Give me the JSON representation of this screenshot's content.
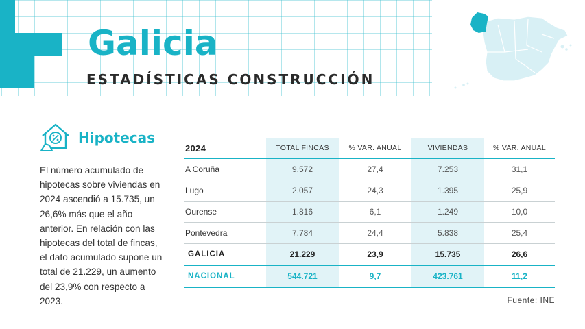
{
  "header": {
    "title": "Galicia",
    "subtitle": "ESTADÍSTICAS CONSTRUCCIÓN"
  },
  "colors": {
    "accent": "#19b3c6",
    "map_light": "#d8f0f5",
    "map_highlight": "#19b3c6",
    "highlight_column": "#e1f3f7"
  },
  "section": {
    "icon": "house-percent-icon",
    "title": "Hipotecas",
    "description": "El número acumulado de hipotecas sobre viviendas en 2024 ascendió a 15.735, un 26,6% más que el año anterior. En relación con las hipotecas del total de fincas, el dato acumulado supone un total de 21.229, un aumento del 23,9% con respecto a 2023."
  },
  "table": {
    "headers": [
      "2024",
      "TOTAL FINCAS",
      "% VAR. ANUAL",
      "VIVIENDAS",
      "% VAR. ANUAL"
    ],
    "rows": [
      [
        "A Coruña",
        "9.572",
        "27,4",
        "7.253",
        "31,1"
      ],
      [
        "Lugo",
        "2.057",
        "24,3",
        "1.395",
        "25,9"
      ],
      [
        "Ourense",
        "1.816",
        "6,1",
        "1.249",
        "10,0"
      ],
      [
        "Pontevedra",
        "7.784",
        "24,4",
        "5.838",
        "25,4"
      ],
      [
        "GALICIA",
        "21.229",
        "23,9",
        "15.735",
        "26,6"
      ],
      [
        "NACIONAL",
        "544.721",
        "9,7",
        "423.761",
        "11,2"
      ]
    ]
  },
  "source": "Fuente: INE"
}
